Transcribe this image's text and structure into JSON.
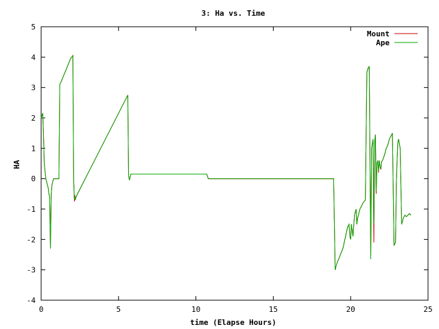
{
  "chart_data": {
    "type": "line",
    "title": "3: Ha vs. Time",
    "xlabel": "time (Elapse Hours)",
    "ylabel": "HA",
    "xlim": [
      0,
      25
    ],
    "ylim": [
      -4,
      5
    ],
    "xticks": [
      "0",
      "5",
      "10",
      "15",
      "20",
      "25"
    ],
    "yticks": [
      "-4",
      "-3",
      "-2",
      "-1",
      "0",
      "1",
      "2",
      "3",
      "4",
      "5"
    ],
    "grid": false,
    "legend_position": "top-right",
    "series": [
      {
        "name": "Mount",
        "color": "#cc0000",
        "x": [
          0,
          0.1,
          0.15,
          0.2,
          0.3,
          0.45,
          0.5,
          0.55,
          0.6,
          0.65,
          0.7,
          0.8,
          1.0,
          1.15,
          1.2,
          1.3,
          1.5,
          1.7,
          1.9,
          2.05,
          2.1,
          2.15,
          2.18,
          2.2,
          2.3,
          5.6,
          5.65,
          5.7,
          5.8,
          5.9,
          10.7,
          10.8,
          11.0,
          14.0,
          18.9,
          18.95,
          19.0,
          19.1,
          19.5,
          19.8,
          19.9,
          19.95,
          20.0,
          20.05,
          20.15,
          20.25,
          20.35,
          20.4,
          20.45,
          20.5,
          20.6,
          20.7,
          20.8,
          20.95,
          21.05,
          21.1,
          21.2,
          21.3,
          21.35,
          21.45,
          21.5,
          21.55,
          21.6,
          21.65,
          21.7,
          21.75,
          21.8,
          21.85,
          21.9,
          21.95,
          22.0,
          22.1,
          22.2,
          22.3,
          22.4,
          22.5,
          22.6,
          22.7,
          22.8,
          22.9,
          22.95,
          23.0,
          23.05,
          23.1,
          23.2,
          23.3,
          23.4,
          23.5,
          23.6,
          23.7,
          23.8,
          23.9
        ],
        "y": [
          2,
          2.15,
          1.5,
          0.5,
          0.0,
          -0.3,
          -0.5,
          -0.6,
          -2.3,
          -0.5,
          -0.2,
          0,
          0,
          0,
          3.1,
          3.2,
          3.45,
          3.7,
          3.95,
          4.05,
          -0.1,
          -0.75,
          -0.55,
          -0.7,
          -0.55,
          2.75,
          0.1,
          -0.05,
          0.15,
          0.15,
          0.15,
          0.0,
          0.0,
          0.0,
          0.0,
          -1.5,
          -3.0,
          -2.8,
          -2.3,
          -1.6,
          -1.5,
          -1.9,
          -2.0,
          -1.5,
          -1.9,
          -1.2,
          -1.0,
          -1.5,
          -1.3,
          -1.2,
          -1.0,
          -0.9,
          -0.8,
          -0.7,
          3.5,
          3.6,
          3.7,
          -2.6,
          1.0,
          1.3,
          -2.1,
          1.2,
          1.45,
          -0.5,
          0.5,
          0.6,
          0.2,
          0.6,
          0.4,
          0.3,
          0.55,
          0.65,
          0.8,
          1.0,
          1.1,
          1.3,
          1.4,
          1.5,
          -2.2,
          -2.1,
          -0.2,
          0.6,
          1.2,
          1.3,
          1.0,
          -1.5,
          -1.3,
          -1.2,
          -1.25,
          -1.2,
          -1.15,
          -1.2
        ]
      },
      {
        "name": "Ape",
        "color": "#00aa00",
        "x": [
          0,
          0.1,
          0.15,
          0.2,
          0.3,
          0.45,
          0.5,
          0.55,
          0.6,
          0.65,
          0.7,
          0.8,
          1.0,
          1.15,
          1.2,
          1.3,
          1.5,
          1.7,
          1.9,
          2.05,
          2.1,
          2.15,
          2.18,
          2.2,
          2.3,
          5.6,
          5.65,
          5.7,
          5.8,
          5.9,
          10.7,
          10.8,
          11.0,
          14.0,
          18.9,
          18.95,
          19.0,
          19.1,
          19.5,
          19.8,
          19.9,
          19.95,
          20.0,
          20.05,
          20.15,
          20.25,
          20.35,
          20.4,
          20.45,
          20.5,
          20.6,
          20.7,
          20.8,
          20.95,
          21.05,
          21.1,
          21.2,
          21.3,
          21.35,
          21.45,
          21.5,
          21.55,
          21.6,
          21.65,
          21.7,
          21.75,
          21.8,
          21.85,
          21.9,
          21.95,
          22.0,
          22.1,
          22.2,
          22.3,
          22.4,
          22.5,
          22.6,
          22.7,
          22.8,
          22.9,
          22.95,
          23.0,
          23.05,
          23.1,
          23.2,
          23.3,
          23.4,
          23.5,
          23.6,
          23.7,
          23.8,
          23.9
        ],
        "y": [
          2,
          2.15,
          1.5,
          0.5,
          0.0,
          -0.3,
          -0.5,
          -0.6,
          -2.3,
          -0.5,
          -0.2,
          0,
          0,
          0,
          3.1,
          3.2,
          3.45,
          3.7,
          3.95,
          4.05,
          0.0,
          -0.7,
          -0.6,
          -0.68,
          -0.55,
          2.75,
          0.1,
          -0.05,
          0.15,
          0.15,
          0.15,
          0.0,
          0.0,
          0.0,
          0.0,
          -1.5,
          -3.0,
          -2.8,
          -2.3,
          -1.6,
          -1.5,
          -1.9,
          -2.0,
          -1.5,
          -1.9,
          -1.2,
          -1.0,
          -1.5,
          -1.3,
          -1.2,
          -1.0,
          -0.9,
          -0.8,
          -0.7,
          3.5,
          3.6,
          3.7,
          -2.65,
          1.0,
          1.3,
          -1.5,
          1.2,
          1.45,
          -0.4,
          0.5,
          0.6,
          0.25,
          0.6,
          0.4,
          0.35,
          0.55,
          0.65,
          0.8,
          1.0,
          1.1,
          1.3,
          1.4,
          1.5,
          -2.2,
          -2.1,
          -0.2,
          0.6,
          1.2,
          1.3,
          1.0,
          -1.5,
          -1.3,
          -1.2,
          -1.25,
          -1.2,
          -1.15,
          -1.2
        ]
      }
    ]
  }
}
